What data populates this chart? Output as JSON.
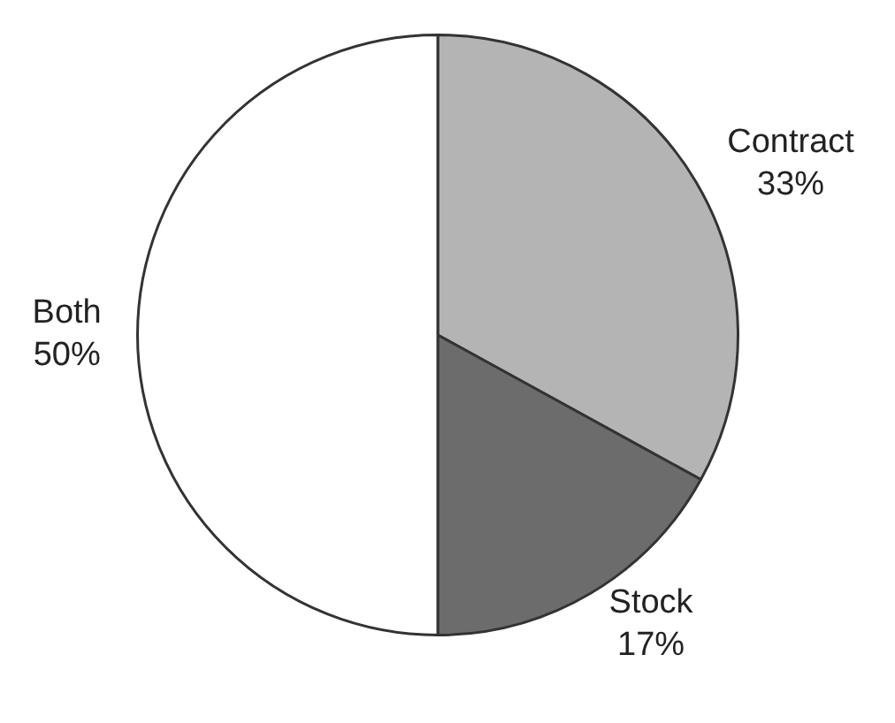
{
  "chart_data": {
    "type": "pie",
    "categories": [
      "Contract",
      "Stock",
      "Both"
    ],
    "values": [
      33,
      17,
      50
    ],
    "value_labels": [
      "33%",
      "17%",
      "50%"
    ],
    "colors": [
      "#b4b4b4",
      "#6c6c6c",
      "#ffffff"
    ],
    "legend": false
  }
}
